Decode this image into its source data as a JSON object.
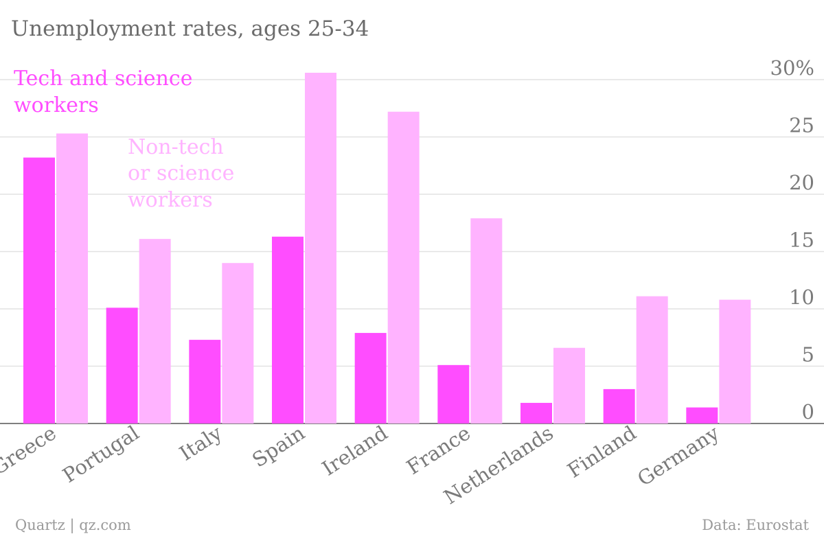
{
  "chart_data": {
    "type": "bar",
    "title": "Unemployment rates, ages 25-34",
    "categories": [
      "Greece",
      "Portugal",
      "Italy",
      "Spain",
      "Ireland",
      "France",
      "Netherlands",
      "Finland",
      "Germany"
    ],
    "series": [
      {
        "name": "Tech and science workers",
        "color": "#ff4dff",
        "values": [
          23.2,
          10.1,
          7.3,
          16.3,
          7.9,
          5.1,
          1.8,
          3.0,
          1.4
        ]
      },
      {
        "name": "Non-tech or science workers",
        "color": "#ffb3ff",
        "values": [
          25.3,
          16.1,
          14.0,
          30.6,
          27.2,
          17.9,
          6.6,
          11.1,
          10.8
        ]
      }
    ],
    "ylim": [
      0,
      30
    ],
    "yticks": [
      "0",
      "5",
      "10",
      "15",
      "20",
      "25",
      "30%"
    ],
    "grid": true,
    "y_axis_side": "right",
    "legend_placement": "inline-top-left"
  },
  "footer": {
    "source_left": "Quartz | qz.com",
    "source_right": "Data: Eurostat"
  }
}
